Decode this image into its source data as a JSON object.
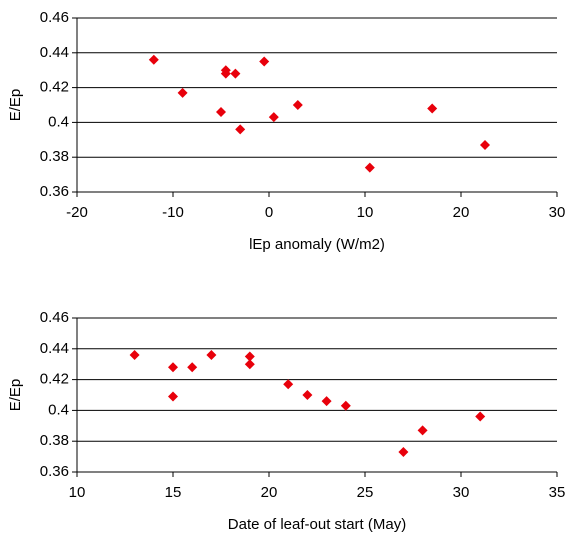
{
  "chart_data": [
    {
      "type": "scatter",
      "xlabel": "lEp anomaly  (W/m2)",
      "ylabel": "E/Ep",
      "color": "#e8000b",
      "grid": true,
      "x": [
        -12,
        -9,
        -5,
        -4.5,
        -4.5,
        -3.5,
        -3,
        -0.5,
        0.5,
        3,
        10.5,
        17,
        22.5
      ],
      "values": [
        0.436,
        0.417,
        0.406,
        0.43,
        0.428,
        0.428,
        0.396,
        0.435,
        0.403,
        0.41,
        0.374,
        0.408,
        0.387
      ],
      "xlim": [
        -20,
        30
      ],
      "xticks": [
        -20,
        -10,
        0,
        10,
        20,
        30
      ],
      "ylim": [
        0.36,
        0.46
      ],
      "yticks": [
        0.36,
        0.38,
        0.4,
        0.42,
        0.44,
        0.46
      ]
    },
    {
      "type": "scatter",
      "xlabel": "Date of leaf-out start (May)",
      "ylabel": "E/Ep",
      "color": "#e8000b",
      "grid": true,
      "x": [
        13,
        15,
        15,
        16,
        17,
        19,
        19,
        21,
        22,
        23,
        24,
        27,
        28,
        31
      ],
      "values": [
        0.436,
        0.428,
        0.409,
        0.428,
        0.436,
        0.435,
        0.43,
        0.417,
        0.41,
        0.406,
        0.403,
        0.373,
        0.387,
        0.396
      ],
      "xlim": [
        10,
        35
      ],
      "xticks": [
        10,
        15,
        20,
        25,
        30,
        35
      ],
      "ylim": [
        0.36,
        0.46
      ],
      "yticks": [
        0.36,
        0.38,
        0.4,
        0.42,
        0.44,
        0.46
      ]
    }
  ]
}
